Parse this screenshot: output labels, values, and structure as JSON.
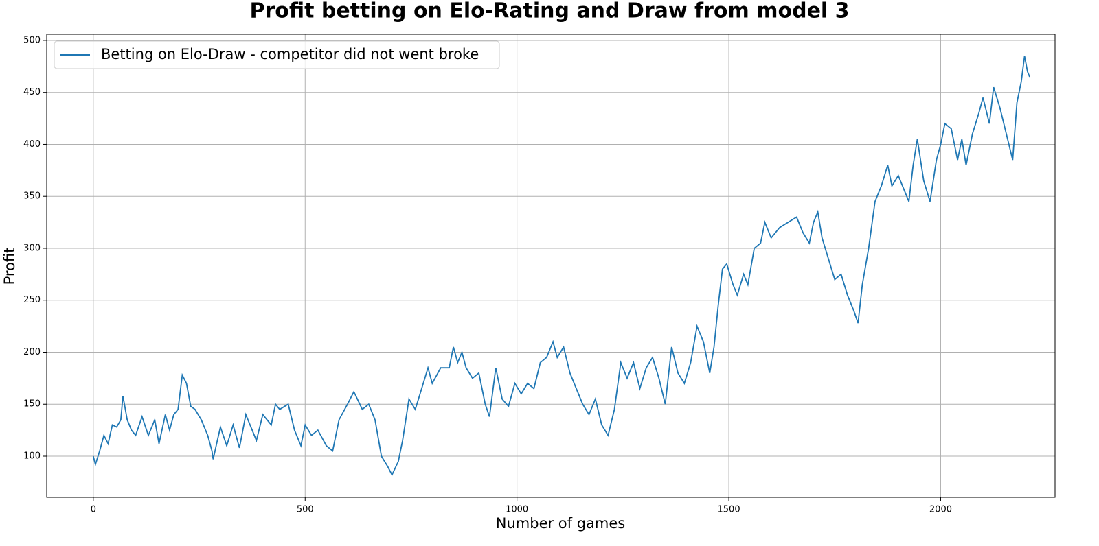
{
  "chart_data": {
    "type": "line",
    "title": "Profit betting on Elo-Rating and Draw from model 3",
    "x_label": "Number of games",
    "y_label": "Profit",
    "series": [
      {
        "name": "Betting on Elo-Draw - competitor did not went broke",
        "color": "#1f77b4",
        "x": [
          0,
          5,
          15,
          25,
          35,
          45,
          55,
          65,
          70,
          80,
          90,
          100,
          115,
          130,
          145,
          155,
          170,
          180,
          190,
          200,
          210,
          220,
          230,
          240,
          255,
          270,
          280,
          283,
          290,
          300,
          315,
          330,
          345,
          360,
          375,
          385,
          400,
          420,
          430,
          440,
          460,
          475,
          490,
          500,
          515,
          530,
          550,
          565,
          580,
          600,
          615,
          635,
          650,
          665,
          680,
          695,
          705,
          720,
          730,
          745,
          760,
          775,
          790,
          800,
          820,
          840,
          850,
          860,
          870,
          880,
          895,
          910,
          925,
          935,
          950,
          965,
          980,
          995,
          1010,
          1025,
          1040,
          1055,
          1070,
          1085,
          1095,
          1110,
          1125,
          1140,
          1155,
          1170,
          1185,
          1200,
          1215,
          1230,
          1245,
          1260,
          1275,
          1290,
          1305,
          1320,
          1335,
          1350,
          1365,
          1380,
          1395,
          1410,
          1425,
          1440,
          1455,
          1465,
          1475,
          1485,
          1495,
          1510,
          1520,
          1535,
          1545,
          1560,
          1575,
          1585,
          1600,
          1620,
          1640,
          1660,
          1675,
          1690,
          1700,
          1710,
          1720,
          1735,
          1750,
          1765,
          1780,
          1795,
          1805,
          1815,
          1830,
          1845,
          1860,
          1875,
          1885,
          1900,
          1915,
          1925,
          1935,
          1945,
          1960,
          1975,
          1990,
          2000,
          2010,
          2025,
          2040,
          2050,
          2060,
          2075,
          2090,
          2100,
          2115,
          2125,
          2140,
          2155,
          2170,
          2180,
          2190,
          2198,
          2205,
          2210
        ],
        "values": [
          100,
          92,
          105,
          120,
          112,
          130,
          128,
          135,
          158,
          135,
          125,
          120,
          138,
          120,
          135,
          112,
          140,
          125,
          140,
          145,
          178,
          170,
          148,
          145,
          135,
          120,
          105,
          97,
          110,
          128,
          110,
          130,
          108,
          140,
          125,
          115,
          140,
          130,
          150,
          145,
          150,
          125,
          110,
          130,
          120,
          125,
          110,
          105,
          135,
          150,
          162,
          145,
          150,
          135,
          100,
          90,
          82,
          95,
          115,
          155,
          145,
          165,
          185,
          170,
          185,
          185,
          205,
          190,
          200,
          185,
          175,
          180,
          150,
          138,
          185,
          155,
          148,
          170,
          160,
          170,
          165,
          190,
          195,
          210,
          195,
          205,
          180,
          165,
          150,
          140,
          155,
          130,
          120,
          145,
          190,
          175,
          190,
          165,
          185,
          195,
          175,
          150,
          205,
          180,
          170,
          190,
          225,
          210,
          180,
          205,
          245,
          280,
          285,
          265,
          255,
          275,
          265,
          300,
          305,
          325,
          310,
          320,
          325,
          330,
          315,
          305,
          325,
          335,
          310,
          290,
          270,
          275,
          255,
          240,
          228,
          265,
          300,
          345,
          360,
          380,
          360,
          370,
          355,
          345,
          380,
          405,
          365,
          345,
          385,
          400,
          420,
          415,
          385,
          405,
          380,
          410,
          430,
          445,
          420,
          455,
          435,
          410,
          385,
          440,
          460,
          485,
          470,
          465
        ]
      }
    ],
    "xlim": [
      -110,
      2270
    ],
    "ylim": [
      60.4,
      505.9
    ],
    "xticks": [
      0,
      500,
      1000,
      1500,
      2000
    ],
    "yticks": [
      100,
      150,
      200,
      250,
      300,
      350,
      400,
      450,
      500
    ],
    "grid": true,
    "legend": "upper left"
  }
}
